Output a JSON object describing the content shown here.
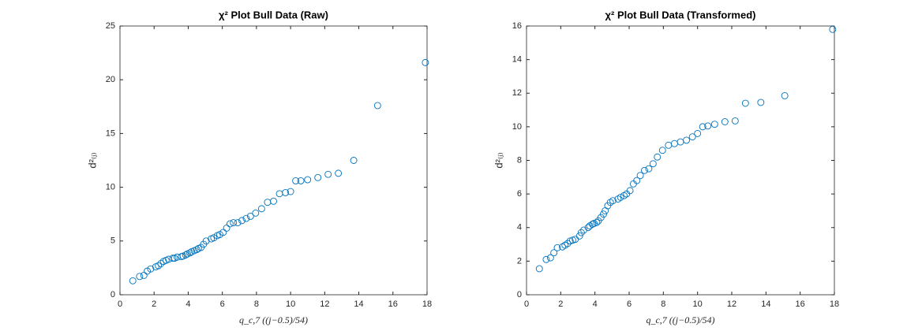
{
  "chart_data": [
    {
      "type": "scatter",
      "title": "χ² Plot Bull Data (Raw)",
      "x_label": "q_c,7 ((j−0.5)/54)",
      "y_label": "d²₍ⱼ₎",
      "color": "#0072bd",
      "x": [
        0.75,
        1.15,
        1.4,
        1.6,
        1.8,
        2.1,
        2.25,
        2.4,
        2.55,
        2.7,
        2.85,
        3.1,
        3.2,
        3.35,
        3.6,
        3.7,
        3.85,
        3.95,
        4.1,
        4.2,
        4.35,
        4.5,
        4.6,
        4.75,
        4.9,
        5.05,
        5.35,
        5.5,
        5.7,
        5.85,
        6.05,
        6.25,
        6.45,
        6.65,
        6.9,
        7.15,
        7.4,
        7.65,
        7.95,
        8.3,
        8.65,
        9.0,
        9.35,
        9.7,
        10.0,
        10.3,
        10.6,
        11.0,
        11.6,
        12.2,
        12.8,
        13.7,
        15.1,
        17.9
      ],
      "values": [
        1.3,
        1.7,
        1.8,
        2.2,
        2.4,
        2.6,
        2.7,
        2.9,
        3.1,
        3.2,
        3.3,
        3.4,
        3.4,
        3.5,
        3.55,
        3.6,
        3.7,
        3.8,
        3.9,
        4.0,
        4.1,
        4.2,
        4.3,
        4.4,
        4.7,
        5.0,
        5.2,
        5.3,
        5.5,
        5.6,
        5.8,
        6.2,
        6.6,
        6.7,
        6.7,
        6.9,
        7.1,
        7.3,
        7.6,
        8.0,
        8.6,
        8.7,
        9.4,
        9.5,
        9.6,
        10.6,
        10.6,
        10.7,
        10.9,
        11.2,
        11.3,
        12.5,
        17.6,
        21.6
      ],
      "xlim": [
        0,
        18
      ],
      "xticks": [
        0,
        2,
        4,
        6,
        8,
        10,
        12,
        14,
        16,
        18
      ],
      "ylim": [
        0,
        25
      ],
      "yticks": [
        0,
        5,
        10,
        15,
        20,
        25
      ]
    },
    {
      "type": "scatter",
      "title": "χ² Plot Bull Data (Transformed)",
      "x_label": "q_c,7 ((j−0.5)/54)",
      "y_label": "d²₍ⱼ₎",
      "color": "#0072bd",
      "x": [
        0.75,
        1.15,
        1.4,
        1.6,
        1.8,
        2.1,
        2.25,
        2.4,
        2.55,
        2.7,
        2.85,
        3.1,
        3.2,
        3.35,
        3.6,
        3.7,
        3.85,
        3.95,
        4.1,
        4.2,
        4.35,
        4.5,
        4.6,
        4.75,
        4.9,
        5.05,
        5.35,
        5.5,
        5.7,
        5.85,
        6.05,
        6.25,
        6.45,
        6.65,
        6.9,
        7.15,
        7.4,
        7.65,
        7.95,
        8.3,
        8.65,
        9.0,
        9.35,
        9.7,
        10.0,
        10.3,
        10.6,
        11.0,
        11.6,
        12.2,
        12.8,
        13.7,
        15.1,
        17.9
      ],
      "values": [
        1.55,
        2.1,
        2.2,
        2.5,
        2.8,
        2.85,
        2.95,
        3.05,
        3.2,
        3.25,
        3.3,
        3.5,
        3.7,
        3.85,
        4.0,
        4.1,
        4.2,
        4.25,
        4.3,
        4.4,
        4.6,
        4.8,
        5.0,
        5.3,
        5.5,
        5.6,
        5.7,
        5.8,
        5.9,
        6.0,
        6.2,
        6.6,
        6.8,
        7.1,
        7.4,
        7.5,
        7.8,
        8.2,
        8.6,
        8.9,
        9.0,
        9.1,
        9.2,
        9.4,
        9.6,
        10.0,
        10.05,
        10.15,
        10.3,
        10.35,
        11.4,
        11.45,
        11.85,
        15.8
      ],
      "xlim": [
        0,
        18
      ],
      "xticks": [
        0,
        2,
        4,
        6,
        8,
        10,
        12,
        14,
        16,
        18
      ],
      "ylim": [
        0,
        16
      ],
      "yticks": [
        0,
        2,
        4,
        6,
        8,
        10,
        12,
        14,
        16
      ]
    }
  ]
}
